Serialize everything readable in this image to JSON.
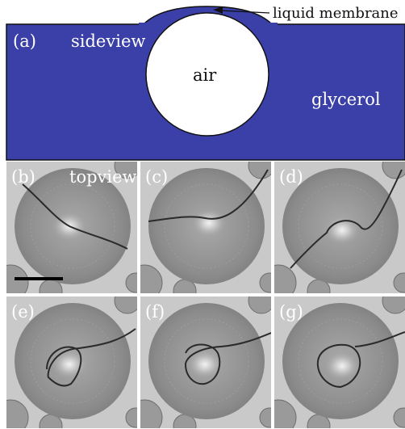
{
  "sideview": {
    "panel_label": "(a)",
    "view_label": "sideview",
    "bubble_label": "air",
    "liquid_label": "glycerol",
    "membrane_label": "liquid membrane",
    "colors": {
      "glycerol": "#3a40a8",
      "bubble": "#ffffff",
      "outline": "#111111"
    }
  },
  "topview": {
    "view_label": "topview",
    "panels": [
      {
        "label": "(b)",
        "stage": 0
      },
      {
        "label": "(c)",
        "stage": 1
      },
      {
        "label": "(d)",
        "stage": 2
      },
      {
        "label": "(e)",
        "stage": 3
      },
      {
        "label": "(f)",
        "stage": 4
      },
      {
        "label": "(g)",
        "stage": 5
      }
    ],
    "colors": {
      "background": "#c9c9c9",
      "bubble": "#8a8a8a",
      "center": "#f2f2f2",
      "crack": "#2a2a2a"
    }
  }
}
